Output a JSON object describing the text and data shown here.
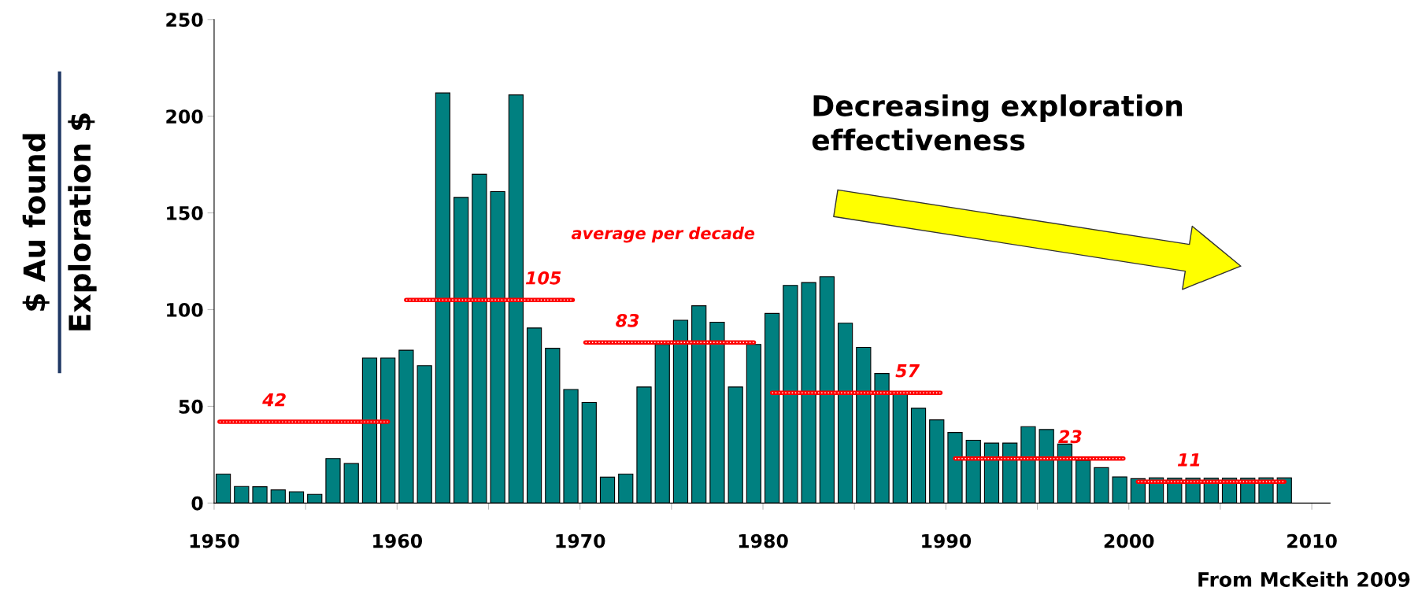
{
  "chart_data": {
    "type": "bar",
    "ylabel": "$ Au found\nExploration $",
    "x": [
      1950.5,
      1951.5,
      1952.5,
      1953.5,
      1954.5,
      1955.5,
      1956.5,
      1957.5,
      1958.5,
      1959.5,
      1960.5,
      1961.5,
      1962.5,
      1963.5,
      1964.5,
      1965.5,
      1966.5,
      1967.5,
      1968.5,
      1969.5,
      1970.5,
      1971.5,
      1972.5,
      1973.5,
      1974.5,
      1975.5,
      1976.5,
      1977.5,
      1978.5,
      1979.5,
      1980.5,
      1981.5,
      1982.5,
      1983.5,
      1984.5,
      1985.5,
      1986.5,
      1987.5,
      1988.5,
      1989.5,
      1990.5,
      1991.5,
      1992.5,
      1993.5,
      1994.5,
      1995.5,
      1996.5,
      1997.5,
      1998.5,
      1999.5,
      2000.5,
      2001.5,
      2002.5,
      2003.5,
      2004.5,
      2005.5,
      2006.5,
      2007.5,
      2008.5
    ],
    "series": [
      {
        "color": "#008080",
        "values": [
          15,
          8.6,
          8.4,
          6.8,
          5.8,
          4.5,
          23,
          20.4,
          75,
          75,
          79,
          71,
          212,
          158,
          170,
          161,
          211,
          90.5,
          80,
          58.7,
          52,
          13.4,
          15,
          60,
          82,
          94.5,
          102,
          93.5,
          60,
          82,
          98,
          112.5,
          114,
          117,
          93,
          80.5,
          67,
          57,
          49,
          43,
          36.5,
          32.5,
          31,
          31,
          39.5,
          38,
          30.5,
          22,
          18.3,
          13.5,
          12.6,
          13,
          12.8,
          12.8,
          12.8,
          12.8,
          12.8,
          13,
          13
        ]
      },
      {
        "type": "line",
        "color": "#ff0000",
        "x": [
          1950.3,
          1953.3,
          1959.5
        ],
        "values": [
          42,
          42,
          42
        ],
        "value_labels": [
          null,
          "42",
          null
        ]
      },
      {
        "type": "line",
        "color": "#ff0000",
        "x": [
          1960.5,
          1968.0,
          1969.6
        ],
        "values": [
          105,
          105,
          105
        ],
        "value_labels": [
          null,
          "105",
          null
        ]
      },
      {
        "type": "line",
        "color": "#ff0000",
        "x": [
          1970.3,
          1972.6,
          1979.5
        ],
        "values": [
          83,
          83,
          83
        ],
        "value_labels": [
          null,
          "83",
          null
        ]
      },
      {
        "type": "line",
        "color": "#ff0000",
        "x": [
          1980.5,
          1987.9,
          1989.7
        ],
        "values": [
          57,
          57,
          57
        ],
        "value_labels": [
          null,
          "57",
          null
        ]
      },
      {
        "type": "line",
        "color": "#ff0000",
        "x": [
          1990.5,
          1996.8,
          1999.7
        ],
        "values": [
          23,
          23,
          23
        ],
        "value_labels": [
          null,
          "23",
          null
        ]
      },
      {
        "type": "line",
        "color": "#ff0000",
        "x": [
          2000.5,
          2003.3,
          2008.5
        ],
        "values": [
          11,
          11,
          11
        ],
        "value_labels": [
          null,
          "11",
          null
        ]
      }
    ],
    "xlim": [
      1950,
      2011
    ],
    "xticks": [
      1950,
      {
        "value": 1955,
        "label": null
      },
      1960,
      {
        "value": 1965,
        "label": null
      },
      1970,
      {
        "value": 1975,
        "label": null
      },
      1980,
      {
        "value": 1985,
        "label": null
      },
      1990,
      {
        "value": 1995,
        "label": null
      },
      2000,
      {
        "value": 2005,
        "label": null
      },
      2010
    ],
    "ylim": [
      0,
      250
    ],
    "yticks": [
      0,
      50,
      100,
      150,
      200,
      250
    ],
    "grid": false,
    "legend": false,
    "annotations": [
      "average per decade",
      "Decreasing exploration\neffectiveness",
      "From McKeith 2009"
    ]
  }
}
